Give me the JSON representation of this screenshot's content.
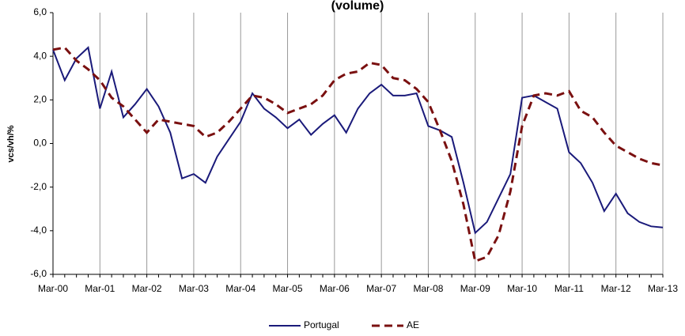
{
  "chart_data": {
    "type": "line",
    "title": "(volume)",
    "y_label": "vcs/vh/%",
    "categories": [
      "Mar-00",
      null,
      null,
      null,
      "Mar-01",
      null,
      null,
      null,
      "Mar-02",
      null,
      null,
      null,
      "Mar-03",
      null,
      null,
      null,
      "Mar-04",
      null,
      null,
      null,
      "Mar-05",
      null,
      null,
      null,
      "Mar-06",
      null,
      null,
      null,
      "Mar-07",
      null,
      null,
      null,
      "Mar-08",
      null,
      null,
      null,
      "Mar-09",
      null,
      null,
      null,
      "Mar-10",
      null,
      null,
      null,
      "Mar-11",
      null,
      null,
      null,
      "Mar-12",
      null,
      null,
      null,
      "Mar-13"
    ],
    "series": [
      {
        "name": "Portugal",
        "color": "#1a1a7a",
        "dash": false,
        "values": [
          4.3,
          2.9,
          3.9,
          4.4,
          1.6,
          3.3,
          1.2,
          1.8,
          2.5,
          1.7,
          0.5,
          -1.6,
          -1.4,
          -1.8,
          -0.6,
          0.2,
          1.0,
          2.3,
          1.6,
          1.2,
          0.7,
          1.1,
          0.4,
          0.9,
          1.3,
          0.5,
          1.6,
          2.3,
          2.7,
          2.2,
          2.2,
          2.3,
          0.8,
          0.6,
          0.3,
          -1.8,
          -4.1,
          -3.6,
          -2.5,
          -1.4,
          2.1,
          2.2,
          1.9,
          1.6,
          -0.4,
          -0.9,
          -1.8,
          -3.1,
          -2.3,
          -3.2,
          -3.6,
          -3.8,
          -3.85
        ]
      },
      {
        "name": "AE",
        "color": "#7a1010",
        "dash": true,
        "values": [
          4.3,
          4.4,
          3.8,
          3.4,
          2.9,
          2.1,
          1.7,
          1.1,
          0.5,
          1.1,
          1.0,
          0.9,
          0.8,
          0.3,
          0.5,
          1.0,
          1.6,
          2.2,
          2.1,
          1.8,
          1.4,
          1.6,
          1.8,
          2.2,
          2.9,
          3.2,
          3.3,
          3.7,
          3.6,
          3.0,
          2.9,
          2.5,
          1.9,
          0.6,
          -0.8,
          -2.8,
          -5.4,
          -5.2,
          -4.2,
          -2.2,
          0.8,
          2.2,
          2.3,
          2.2,
          2.4,
          1.5,
          1.2,
          0.5,
          -0.1,
          -0.4,
          -0.7,
          -0.9,
          -1.0
        ]
      }
    ],
    "ylim": [
      -6,
      6
    ],
    "yticks": [
      {
        "value": -6,
        "label": "-6,0"
      },
      {
        "value": -4,
        "label": "-4,0"
      },
      {
        "value": -2,
        "label": "-2,0"
      },
      {
        "value": 0,
        "label": "0,0"
      },
      {
        "value": 2,
        "label": "2,0"
      },
      {
        "value": 4,
        "label": "4,0"
      },
      {
        "value": 6,
        "label": "6,0"
      }
    ],
    "grid": "x",
    "legend": "bottom"
  }
}
